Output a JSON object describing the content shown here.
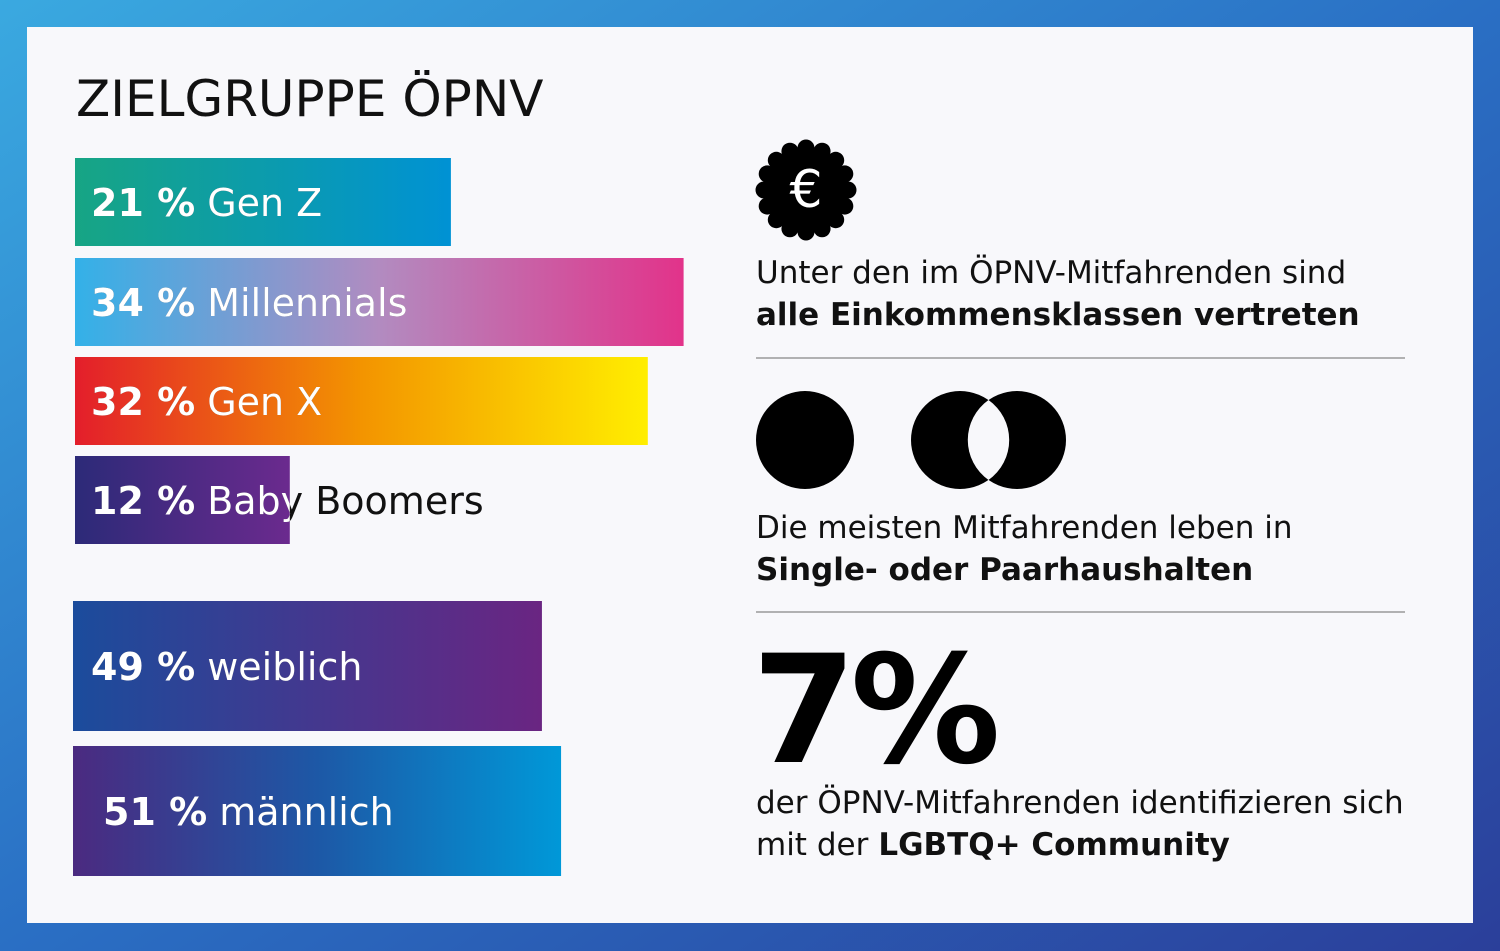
{
  "title": "ZIELGRUPPE ÖPNV",
  "age_groups": {
    "labels": [
      "Gen Z",
      "Millennials",
      "Gen X",
      "Baby Boomers"
    ],
    "values": [
      21,
      34,
      32,
      12
    ],
    "value_labels": [
      "21 %",
      "34 %",
      "32 %",
      "12 %"
    ]
  },
  "gender": {
    "labels": [
      "weiblich",
      "männlich"
    ],
    "values": [
      49,
      51
    ],
    "value_labels": [
      "49 %",
      "51 %"
    ]
  },
  "income": {
    "icon": "€",
    "text_regular": "Unter den im ÖPNV-Mitfahrenden sind",
    "text_bold": "alle Einkommensklassen vertreten"
  },
  "households": {
    "text_regular": "Die meisten Mitfahrenden leben in",
    "text_bold": "Single- oder Paarhaushalten"
  },
  "lgbtq": {
    "big_figure": "7%",
    "line1": "der ÖPNV-Mitfahrenden identifizieren sich",
    "line2_regular": "mit der",
    "line2_bold": "LGBTQ+ Community"
  }
}
